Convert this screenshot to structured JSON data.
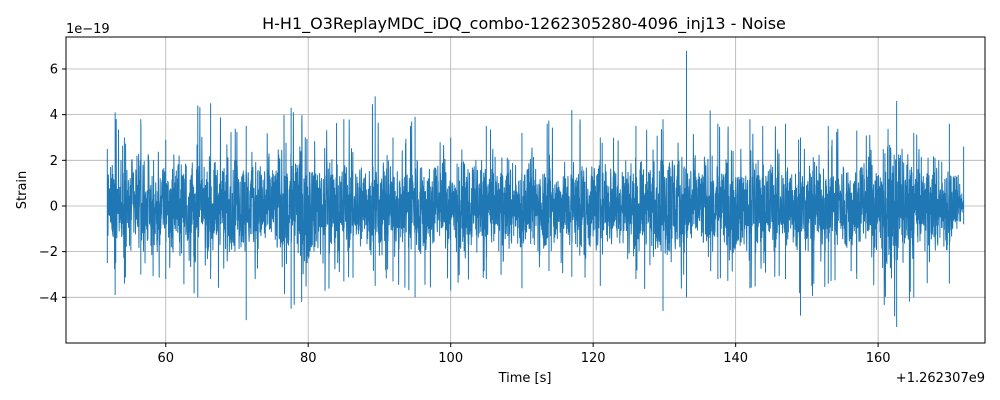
{
  "chart_data": {
    "type": "line",
    "title": "H-H1_O3ReplayMDC_iDQ_combo-1262305280-4096_inj13 - Noise",
    "xlabel": "Time [s]",
    "ylabel": "Strain",
    "x_offset_label": "+1.262307e9",
    "y_scale_label": "1e−19",
    "xlim": [
      46,
      175
    ],
    "ylim": [
      -6.0,
      7.4
    ],
    "xticks": [
      60,
      80,
      100,
      120,
      140,
      160
    ],
    "xtick_labels": [
      "60",
      "80",
      "100",
      "120",
      "140",
      "160"
    ],
    "yticks": [
      -4,
      -2,
      0,
      2,
      4,
      6
    ],
    "ytick_labels": [
      "−4",
      "−2",
      "0",
      "2",
      "4",
      "6"
    ],
    "grid": true,
    "line_color": "#1f77b4",
    "series": [
      {
        "x_range": [
          51.8,
          172.0
        ],
        "envelope": {
          "x": [
            51.8,
            52.9,
            54.2,
            56.5,
            60.0,
            64.5,
            66.3,
            71.3,
            77.6,
            85.0,
            89.4,
            91.9,
            95.0,
            100.0,
            105.0,
            110.0,
            117.0,
            121.0,
            126.0,
            129.8,
            133.1,
            137.5,
            142.0,
            147.0,
            149.1,
            153.0,
            157.0,
            162.6,
            165.0,
            170.0,
            172.0
          ],
          "upper": [
            2.5,
            4.1,
            3.0,
            3.8,
            2.9,
            4.4,
            4.5,
            3.5,
            4.3,
            3.8,
            4.8,
            3.0,
            3.9,
            3.0,
            3.5,
            3.2,
            4.2,
            3.0,
            3.5,
            3.8,
            6.8,
            3.6,
            3.8,
            3.6,
            3.0,
            3.5,
            3.3,
            4.6,
            3.2,
            3.6,
            2.6
          ],
          "lower": [
            -2.5,
            -3.9,
            -3.4,
            -3.0,
            -3.2,
            -4.0,
            -3.2,
            -5.0,
            -4.5,
            -3.3,
            -3.5,
            -3.3,
            -4.0,
            -3.7,
            -3.2,
            -3.6,
            -3.1,
            -3.5,
            -3.2,
            -4.6,
            -4.0,
            -3.2,
            -3.6,
            -3.2,
            -4.8,
            -3.4,
            -3.2,
            -5.3,
            -4.0,
            -3.4,
            -0.8
          ]
        }
      }
    ]
  }
}
